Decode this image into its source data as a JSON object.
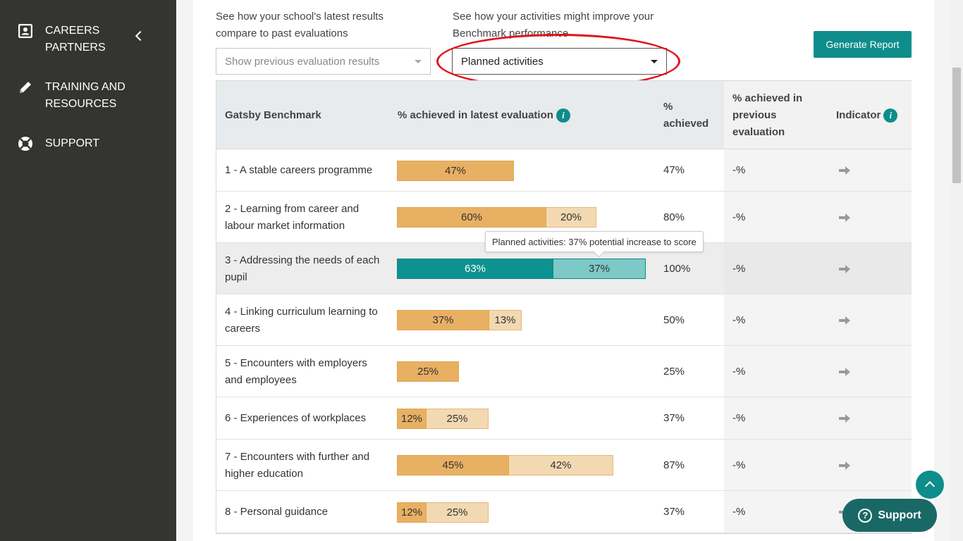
{
  "sidebar": {
    "items": [
      {
        "label": "CAREERS PARTNERS",
        "icon": "contact-card-icon"
      },
      {
        "label": "TRAINING AND RESOURCES",
        "icon": "pencil-icon"
      },
      {
        "label": "SUPPORT",
        "icon": "lifebuoy-icon"
      }
    ]
  },
  "controls": {
    "previous_label": "See how your school's latest results compare to past evaluations",
    "previous_placeholder": "Show previous evaluation results",
    "activities_label": "See how your activities might improve your Benchmark performance",
    "activities_value": "Planned activities",
    "generate_label": "Generate Report"
  },
  "table": {
    "headers": {
      "benchmark": "Gatsby Benchmark",
      "latest": "% achieved in latest evaluation",
      "achieved": "% achieved",
      "previous": "% achieved in previous evaluation",
      "indicator": "Indicator"
    },
    "rows": [
      {
        "name": "1 - A stable careers programme",
        "current": "47%",
        "planned": "",
        "cur_pct": 47,
        "plan_pct": 0,
        "achieved": "47%",
        "previous": "-%"
      },
      {
        "name": "2 - Learning from career and labour market information",
        "current": "60%",
        "planned": "20%",
        "cur_pct": 60,
        "plan_pct": 20,
        "achieved": "80%",
        "previous": "-%"
      },
      {
        "name": "3 - Addressing the needs of each pupil",
        "current": "63%",
        "planned": "37%",
        "cur_pct": 63,
        "plan_pct": 37,
        "achieved": "100%",
        "previous": "-%"
      },
      {
        "name": "4 - Linking curriculum learning to careers",
        "current": "37%",
        "planned": "13%",
        "cur_pct": 37,
        "plan_pct": 13,
        "achieved": "50%",
        "previous": "-%"
      },
      {
        "name": "5 - Encounters with employers and employees",
        "current": "25%",
        "planned": "",
        "cur_pct": 25,
        "plan_pct": 0,
        "achieved": "25%",
        "previous": "-%"
      },
      {
        "name": "6 - Experiences of workplaces",
        "current": "12%",
        "planned": "25%",
        "cur_pct": 12,
        "plan_pct": 25,
        "achieved": "37%",
        "previous": "-%"
      },
      {
        "name": "7 - Encounters with further and higher education",
        "current": "45%",
        "planned": "42%",
        "cur_pct": 45,
        "plan_pct": 42,
        "achieved": "87%",
        "previous": "-%"
      },
      {
        "name": "8 - Personal guidance",
        "current": "12%",
        "planned": "25%",
        "cur_pct": 12,
        "plan_pct": 25,
        "achieved": "37%",
        "previous": "-%"
      }
    ]
  },
  "tooltip": "Planned activities: 37% potential increase to score",
  "support_label": "Support",
  "colors": {
    "accent": "#0e8d8b",
    "current_bar": "#e8b063",
    "planned_bar": "#f2d9b2",
    "highlight_current": "#0e9290",
    "highlight_planned": "#7cc9c7",
    "annotation": "#e0141c"
  }
}
